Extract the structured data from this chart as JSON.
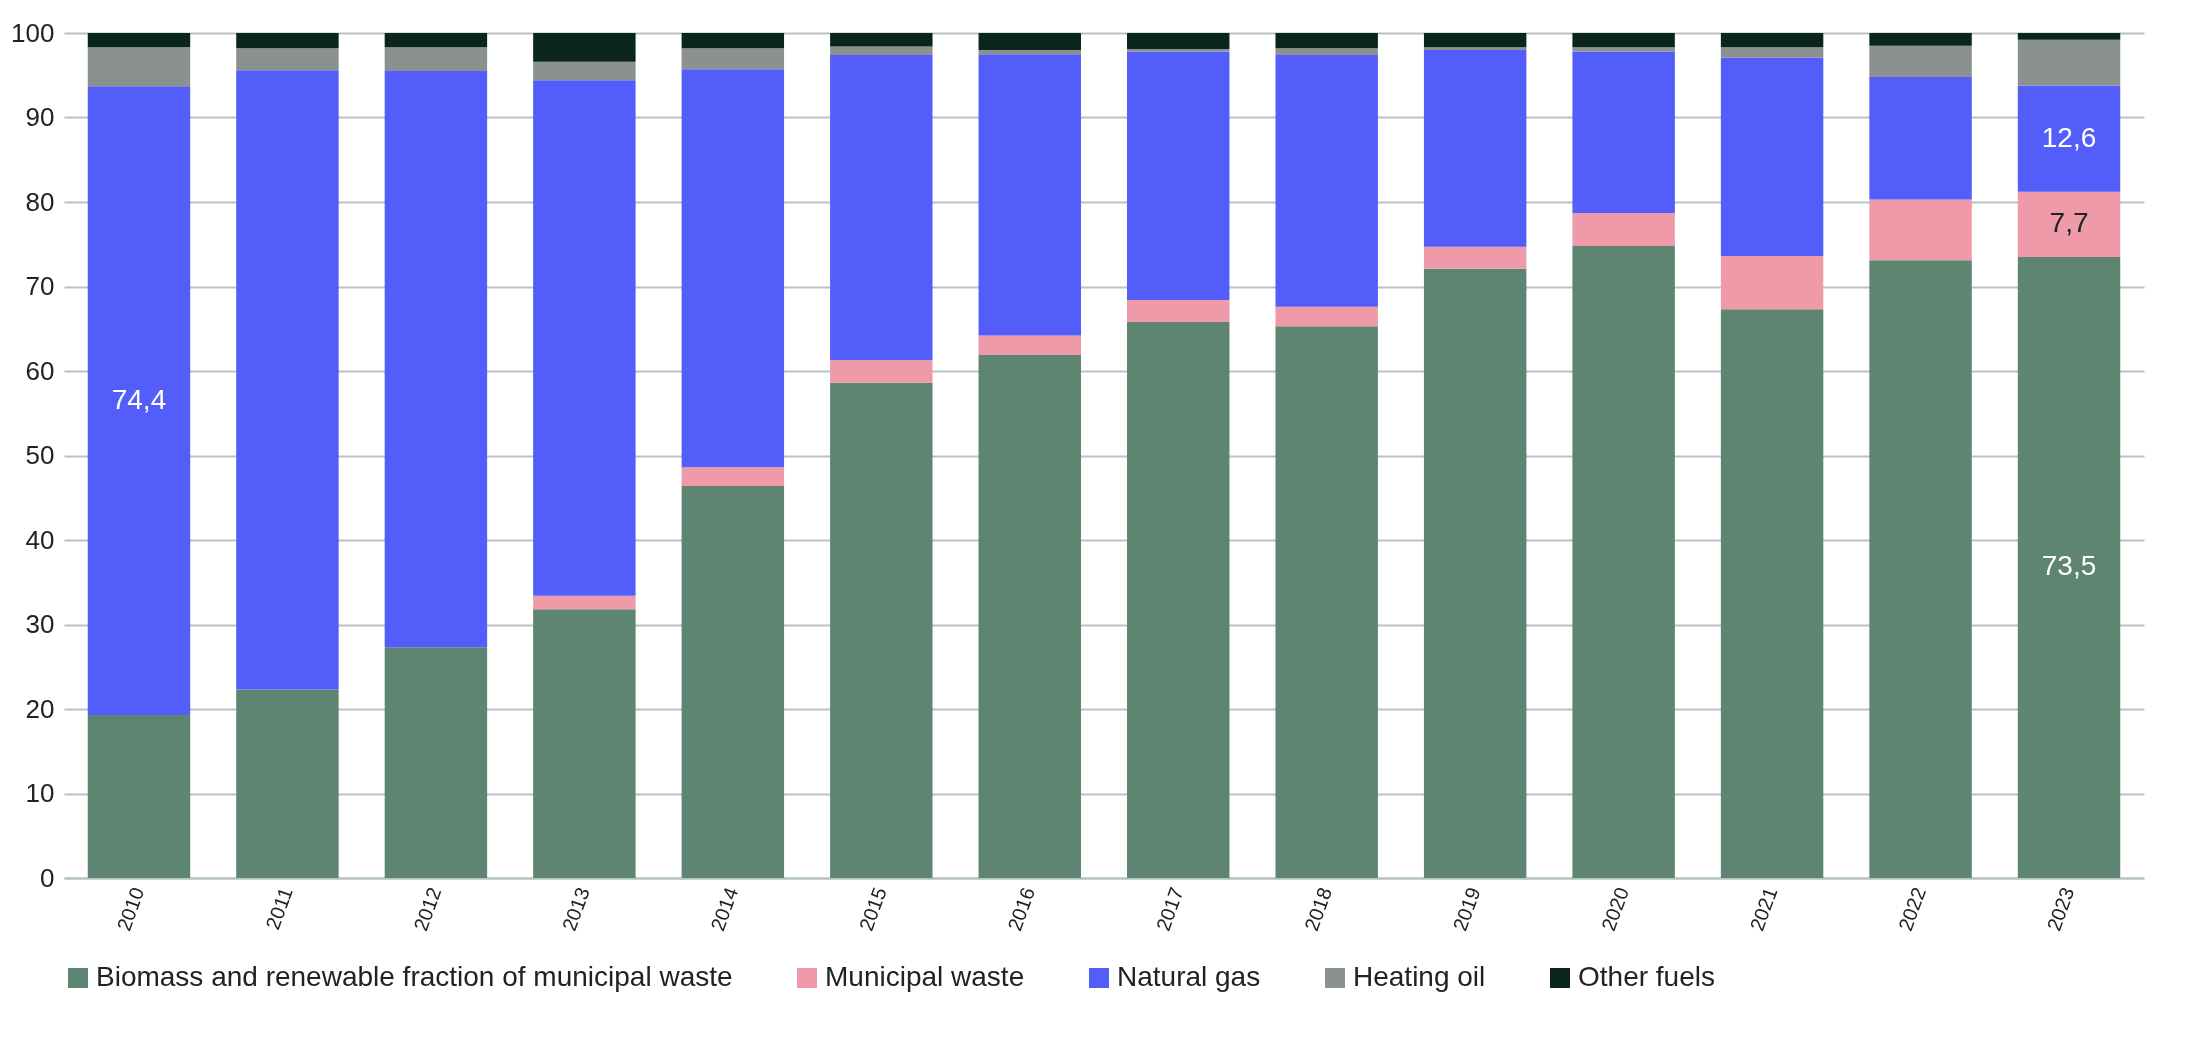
{
  "chart_data": {
    "type": "bar",
    "stacked": true,
    "categories": [
      "2010",
      "2011",
      "2012",
      "2013",
      "2014",
      "2015",
      "2016",
      "2017",
      "2018",
      "2019",
      "2020",
      "2021",
      "2022",
      "2023"
    ],
    "series": [
      {
        "name": "Biomass and renewable fraction of municipal waste",
        "color": "#5e8571",
        "values": [
          19.3,
          22.3,
          27.3,
          31.8,
          46.4,
          58.6,
          61.9,
          65.8,
          65.3,
          72.1,
          74.8,
          67.3,
          73.1,
          73.5
        ],
        "value_labels": [
          null,
          null,
          null,
          null,
          null,
          null,
          null,
          null,
          null,
          null,
          null,
          null,
          null,
          "73,5"
        ]
      },
      {
        "name": "Municipal waste",
        "color": "#ef9aa8",
        "values": [
          0,
          0,
          0,
          1.6,
          2.2,
          2.7,
          2.3,
          2.6,
          2.3,
          2.6,
          3.9,
          6.3,
          7.2,
          7.7
        ],
        "value_labels": [
          null,
          null,
          null,
          null,
          null,
          null,
          null,
          null,
          null,
          null,
          null,
          null,
          null,
          "7,7"
        ]
      },
      {
        "name": "Natural gas",
        "color": "#535dfa",
        "values": [
          74.4,
          73.3,
          68.2,
          61.0,
          47.1,
          36.1,
          33.3,
          29.4,
          29.8,
          23.3,
          19.1,
          23.5,
          14.5,
          12.6
        ],
        "value_labels": [
          "74,4",
          null,
          null,
          null,
          null,
          null,
          null,
          null,
          null,
          null,
          null,
          null,
          null,
          "12,6"
        ]
      },
      {
        "name": "Heating oil",
        "color": "#8a9190",
        "values": [
          4.6,
          2.6,
          2.8,
          2.2,
          2.5,
          1.0,
          0.5,
          0.3,
          0.8,
          0.3,
          0.5,
          1.2,
          3.7,
          5.4
        ]
      },
      {
        "name": "Other fuels",
        "color": "#0a251d",
        "values": [
          1.7,
          1.8,
          1.7,
          3.4,
          1.8,
          1.6,
          2.0,
          1.9,
          1.8,
          1.7,
          1.7,
          1.7,
          1.5,
          0.8
        ]
      }
    ],
    "ylim": [
      0,
      100
    ],
    "yticks": [
      0,
      10,
      20,
      30,
      40,
      50,
      60,
      70,
      80,
      90,
      100
    ],
    "grid": "y",
    "legend": "bottom"
  }
}
